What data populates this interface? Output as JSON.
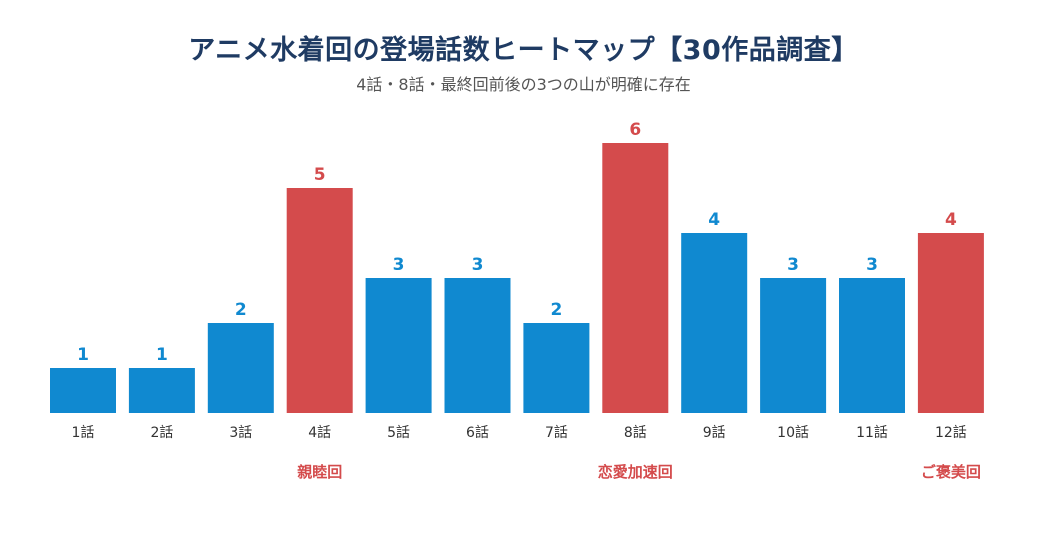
{
  "chart_data": {
    "type": "bar",
    "title": "アニメ水着回の登場話数ヒートマップ【30作品調査】",
    "subtitle": "4話・8話・最終回前後の3つの山が明確に存在",
    "categories": [
      "1話",
      "2話",
      "3話",
      "4話",
      "5話",
      "6話",
      "7話",
      "8話",
      "9話",
      "10話",
      "11話",
      "12話"
    ],
    "values": [
      1,
      1,
      2,
      5,
      3,
      3,
      2,
      6,
      4,
      3,
      3,
      4
    ],
    "highlighted": [
      false,
      false,
      false,
      true,
      false,
      false,
      false,
      true,
      false,
      false,
      false,
      true
    ],
    "annotations": [
      {
        "category": "4話",
        "text": "親睦回"
      },
      {
        "category": "8話",
        "text": "恋愛加速回"
      },
      {
        "category": "12話",
        "text": "ご褒美回"
      }
    ],
    "ylim": [
      0,
      6
    ],
    "grid": false,
    "colors": {
      "normal_bar": "#1089d0",
      "highlight_bar": "#d44b4c",
      "normal_value": "#1089d0",
      "highlight_value": "#d44b4c",
      "title": "#1f3b63",
      "annotation": "#d44b4c"
    }
  }
}
